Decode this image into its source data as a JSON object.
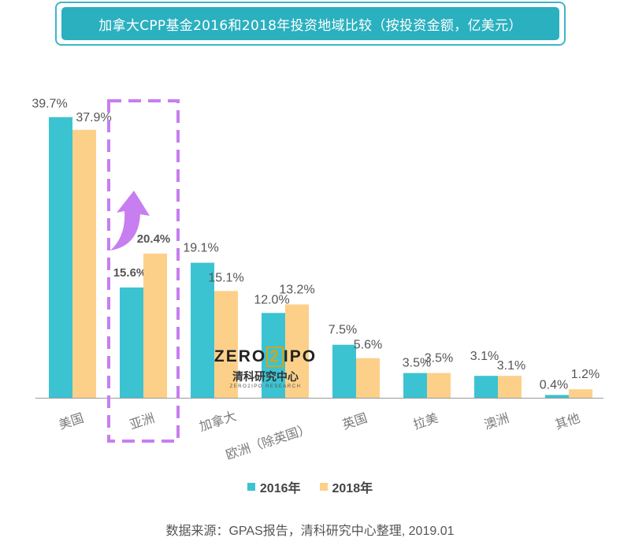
{
  "title": "加拿大CPP基金2016和2018年投资地域比较（按投资金额，亿美元）",
  "source": "数据来源：GPAS报告，清科研究中心整理, 2019.01",
  "watermark": {
    "logo_left": "ZERO",
    "logo_box": "2",
    "logo_right": "IPO",
    "cn": "清科研究中心",
    "en": "ZERO2IPO RESEARCH"
  },
  "colors": {
    "series_2016": "#3cc3d2",
    "series_2018": "#fdd089",
    "title_bg": "#2bb0bf",
    "highlight": "#c77ef0",
    "axis": "#999999"
  },
  "chart_data": {
    "type": "bar",
    "title": "加拿大CPP基金2016和2018年投资地域比较（按投资金额，亿美元）",
    "categories": [
      "美国",
      "亚洲",
      "加拿大",
      "欧洲（除英国）",
      "英国",
      "拉美",
      "澳洲",
      "其他"
    ],
    "series": [
      {
        "name": "2016年",
        "values": [
          39.7,
          15.6,
          19.1,
          12.0,
          7.5,
          3.5,
          3.1,
          0.4
        ],
        "labels": [
          "39.7%",
          "15.6%",
          "19.1%",
          "12.0%",
          "7.5%",
          "3.5%",
          "3.1%",
          "0.4%"
        ]
      },
      {
        "name": "2018年",
        "values": [
          37.9,
          20.4,
          15.1,
          13.2,
          5.6,
          3.5,
          3.1,
          1.2
        ],
        "labels": [
          "37.9%",
          "20.4%",
          "15.1%",
          "13.2%",
          "5.6%",
          "3.5%",
          "3.1%",
          "1.2%"
        ]
      }
    ],
    "highlight_category": "亚洲",
    "ylim": [
      0,
      40
    ],
    "grid": false,
    "legend_position": "bottom"
  }
}
